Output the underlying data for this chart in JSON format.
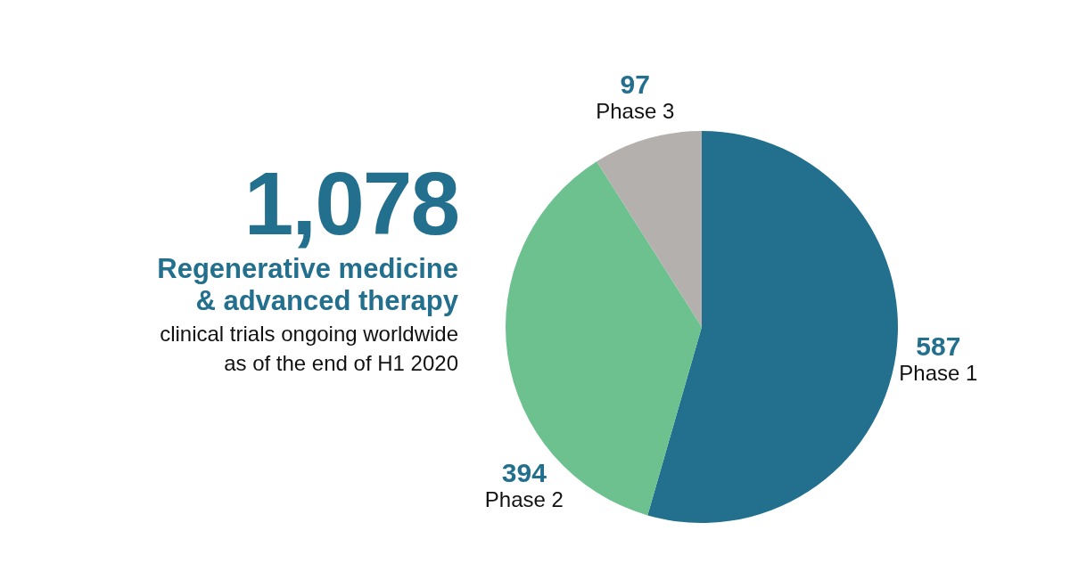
{
  "chart_data": {
    "type": "pie",
    "title": "1,078",
    "subtitle": "Regenerative medicine & advanced therapy",
    "annotations": [
      "clinical trials ongoing worldwide as of the end of H1 2020"
    ],
    "categories": [
      "Phase 1",
      "Phase 2",
      "Phase 3"
    ],
    "values": [
      587,
      394,
      97
    ],
    "colors": [
      "#236f8e",
      "#6cc18e",
      "#b3b0ad"
    ],
    "data_labels": true
  }
}
